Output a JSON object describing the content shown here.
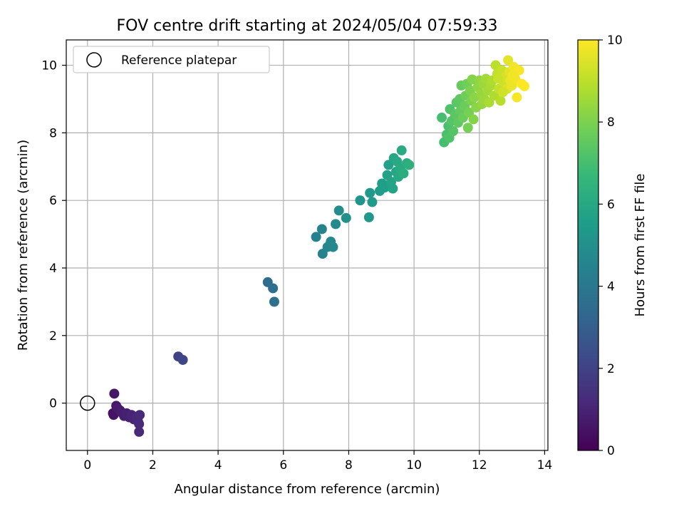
{
  "chart_data": {
    "type": "scatter",
    "title": "FOV centre drift starting at 2024/05/04 07:59:33",
    "xlabel": "Angular distance from reference (arcmin)",
    "ylabel": "Rotation from reference (arcmin)",
    "xlim": [
      -0.65,
      14.1
    ],
    "ylim": [
      -1.4,
      10.75
    ],
    "xticks": [
      0,
      2,
      4,
      6,
      8,
      10,
      12,
      14
    ],
    "yticks": [
      0,
      2,
      4,
      6,
      8,
      10
    ],
    "grid": true,
    "legend": {
      "placement": "upper-left",
      "entries": [
        "Reference platepar"
      ]
    },
    "reference_point": {
      "x": 0,
      "y": 0,
      "label": "Reference platepar"
    },
    "colorbar": {
      "label": "Hours from first FF file",
      "range": [
        0,
        10
      ],
      "ticks": [
        0,
        2,
        4,
        6,
        8,
        10
      ],
      "colormap": "viridis",
      "stops": [
        "#440154",
        "#482878",
        "#3e4989",
        "#31688e",
        "#26828e",
        "#1f9e89",
        "#35b779",
        "#6ece58",
        "#b5de2b",
        "#fde725"
      ]
    },
    "points": [
      {
        "x": 0.78,
        "y": -0.3,
        "h": 0.4
      },
      {
        "x": 0.8,
        "y": -0.35,
        "h": 0.5
      },
      {
        "x": 0.82,
        "y": 0.28,
        "h": 0.6
      },
      {
        "x": 0.88,
        "y": -0.08,
        "h": 0.6
      },
      {
        "x": 0.92,
        "y": -0.15,
        "h": 0.7
      },
      {
        "x": 1.0,
        "y": -0.22,
        "h": 0.7
      },
      {
        "x": 1.05,
        "y": -0.28,
        "h": 0.8
      },
      {
        "x": 1.12,
        "y": -0.38,
        "h": 0.8
      },
      {
        "x": 1.2,
        "y": -0.3,
        "h": 0.9
      },
      {
        "x": 1.28,
        "y": -0.42,
        "h": 0.9
      },
      {
        "x": 1.35,
        "y": -0.35,
        "h": 1.0
      },
      {
        "x": 1.42,
        "y": -0.48,
        "h": 1.0
      },
      {
        "x": 1.5,
        "y": -0.4,
        "h": 1.1
      },
      {
        "x": 1.55,
        "y": -0.55,
        "h": 1.1
      },
      {
        "x": 1.58,
        "y": -0.62,
        "h": 1.2
      },
      {
        "x": 1.6,
        "y": -0.35,
        "h": 1.2
      },
      {
        "x": 1.58,
        "y": -0.85,
        "h": 1.2
      },
      {
        "x": 2.78,
        "y": 1.38,
        "h": 2.0
      },
      {
        "x": 2.92,
        "y": 1.28,
        "h": 2.1
      },
      {
        "x": 5.52,
        "y": 3.58,
        "h": 3.5
      },
      {
        "x": 5.68,
        "y": 3.4,
        "h": 3.6
      },
      {
        "x": 5.72,
        "y": 3.0,
        "h": 3.7
      },
      {
        "x": 7.0,
        "y": 4.92,
        "h": 4.4
      },
      {
        "x": 7.18,
        "y": 5.15,
        "h": 4.5
      },
      {
        "x": 7.2,
        "y": 4.42,
        "h": 4.5
      },
      {
        "x": 7.35,
        "y": 4.62,
        "h": 4.6
      },
      {
        "x": 7.45,
        "y": 4.78,
        "h": 4.7
      },
      {
        "x": 7.52,
        "y": 4.62,
        "h": 4.7
      },
      {
        "x": 7.6,
        "y": 5.3,
        "h": 4.8
      },
      {
        "x": 7.7,
        "y": 5.7,
        "h": 4.9
      },
      {
        "x": 7.92,
        "y": 5.48,
        "h": 5.0
      },
      {
        "x": 8.35,
        "y": 6.0,
        "h": 5.2
      },
      {
        "x": 8.62,
        "y": 5.5,
        "h": 5.3
      },
      {
        "x": 8.65,
        "y": 6.22,
        "h": 5.4
      },
      {
        "x": 8.72,
        "y": 5.95,
        "h": 5.4
      },
      {
        "x": 8.95,
        "y": 6.28,
        "h": 5.5
      },
      {
        "x": 9.02,
        "y": 6.5,
        "h": 5.6
      },
      {
        "x": 9.1,
        "y": 6.38,
        "h": 5.6
      },
      {
        "x": 9.18,
        "y": 6.75,
        "h": 5.7
      },
      {
        "x": 9.22,
        "y": 7.05,
        "h": 5.7
      },
      {
        "x": 9.3,
        "y": 6.55,
        "h": 5.8
      },
      {
        "x": 9.35,
        "y": 6.35,
        "h": 5.8
      },
      {
        "x": 9.38,
        "y": 7.25,
        "h": 5.9
      },
      {
        "x": 9.45,
        "y": 6.85,
        "h": 5.9
      },
      {
        "x": 9.48,
        "y": 7.15,
        "h": 6.0
      },
      {
        "x": 9.52,
        "y": 6.7,
        "h": 6.0
      },
      {
        "x": 9.58,
        "y": 6.95,
        "h": 6.1
      },
      {
        "x": 9.62,
        "y": 7.48,
        "h": 6.1
      },
      {
        "x": 9.68,
        "y": 6.8,
        "h": 6.2
      },
      {
        "x": 9.78,
        "y": 7.1,
        "h": 6.2
      },
      {
        "x": 9.85,
        "y": 7.05,
        "h": 6.3
      },
      {
        "x": 10.85,
        "y": 8.45,
        "h": 7.0
      },
      {
        "x": 10.92,
        "y": 7.72,
        "h": 7.0
      },
      {
        "x": 11.0,
        "y": 7.95,
        "h": 7.1
      },
      {
        "x": 11.05,
        "y": 8.2,
        "h": 7.1
      },
      {
        "x": 11.08,
        "y": 7.85,
        "h": 7.2
      },
      {
        "x": 11.1,
        "y": 8.7,
        "h": 7.2
      },
      {
        "x": 11.15,
        "y": 8.35,
        "h": 7.3
      },
      {
        "x": 11.2,
        "y": 8.05,
        "h": 7.3
      },
      {
        "x": 11.25,
        "y": 8.55,
        "h": 7.4
      },
      {
        "x": 11.3,
        "y": 8.9,
        "h": 7.4
      },
      {
        "x": 11.35,
        "y": 8.3,
        "h": 7.5
      },
      {
        "x": 11.4,
        "y": 9.0,
        "h": 7.5
      },
      {
        "x": 11.42,
        "y": 8.65,
        "h": 7.6
      },
      {
        "x": 11.45,
        "y": 9.4,
        "h": 7.6
      },
      {
        "x": 11.5,
        "y": 8.45,
        "h": 7.7
      },
      {
        "x": 11.55,
        "y": 8.8,
        "h": 7.7
      },
      {
        "x": 11.58,
        "y": 9.1,
        "h": 7.8
      },
      {
        "x": 11.62,
        "y": 9.45,
        "h": 7.8
      },
      {
        "x": 11.65,
        "y": 8.15,
        "h": 7.9
      },
      {
        "x": 11.68,
        "y": 8.6,
        "h": 7.9
      },
      {
        "x": 11.72,
        "y": 9.25,
        "h": 8.0
      },
      {
        "x": 11.75,
        "y": 8.95,
        "h": 8.0
      },
      {
        "x": 11.78,
        "y": 9.58,
        "h": 8.1
      },
      {
        "x": 11.82,
        "y": 8.4,
        "h": 8.1
      },
      {
        "x": 11.85,
        "y": 9.05,
        "h": 8.2
      },
      {
        "x": 11.9,
        "y": 8.75,
        "h": 8.2
      },
      {
        "x": 11.95,
        "y": 9.35,
        "h": 8.3
      },
      {
        "x": 12.0,
        "y": 9.55,
        "h": 8.3
      },
      {
        "x": 12.05,
        "y": 9.15,
        "h": 8.4
      },
      {
        "x": 12.08,
        "y": 8.85,
        "h": 8.4
      },
      {
        "x": 12.12,
        "y": 9.45,
        "h": 8.5
      },
      {
        "x": 12.15,
        "y": 9.0,
        "h": 8.5
      },
      {
        "x": 12.2,
        "y": 9.6,
        "h": 8.6
      },
      {
        "x": 12.25,
        "y": 9.25,
        "h": 8.6
      },
      {
        "x": 12.3,
        "y": 8.9,
        "h": 8.7
      },
      {
        "x": 12.35,
        "y": 9.4,
        "h": 8.7
      },
      {
        "x": 12.4,
        "y": 9.55,
        "h": 8.8
      },
      {
        "x": 12.45,
        "y": 9.1,
        "h": 8.8
      },
      {
        "x": 12.5,
        "y": 10.0,
        "h": 9.0
      },
      {
        "x": 12.55,
        "y": 9.75,
        "h": 9.1
      },
      {
        "x": 12.6,
        "y": 9.3,
        "h": 9.1
      },
      {
        "x": 12.65,
        "y": 8.95,
        "h": 8.9
      },
      {
        "x": 12.7,
        "y": 9.85,
        "h": 9.2
      },
      {
        "x": 12.75,
        "y": 9.5,
        "h": 9.3
      },
      {
        "x": 12.8,
        "y": 9.65,
        "h": 9.4
      },
      {
        "x": 12.85,
        "y": 9.3,
        "h": 9.5
      },
      {
        "x": 12.88,
        "y": 10.15,
        "h": 9.6
      },
      {
        "x": 12.92,
        "y": 9.8,
        "h": 9.6
      },
      {
        "x": 12.95,
        "y": 9.55,
        "h": 9.7
      },
      {
        "x": 13.0,
        "y": 9.4,
        "h": 9.7
      },
      {
        "x": 13.05,
        "y": 9.95,
        "h": 9.8
      },
      {
        "x": 13.1,
        "y": 9.6,
        "h": 9.8
      },
      {
        "x": 13.15,
        "y": 9.05,
        "h": 9.9
      },
      {
        "x": 13.22,
        "y": 9.85,
        "h": 9.9
      },
      {
        "x": 13.3,
        "y": 9.45,
        "h": 10.0
      },
      {
        "x": 13.38,
        "y": 9.38,
        "h": 10.0
      },
      {
        "x": 12.58,
        "y": 9.6,
        "h": 9.2
      },
      {
        "x": 12.72,
        "y": 9.2,
        "h": 9.3
      },
      {
        "x": 13.02,
        "y": 9.7,
        "h": 9.8
      }
    ]
  }
}
